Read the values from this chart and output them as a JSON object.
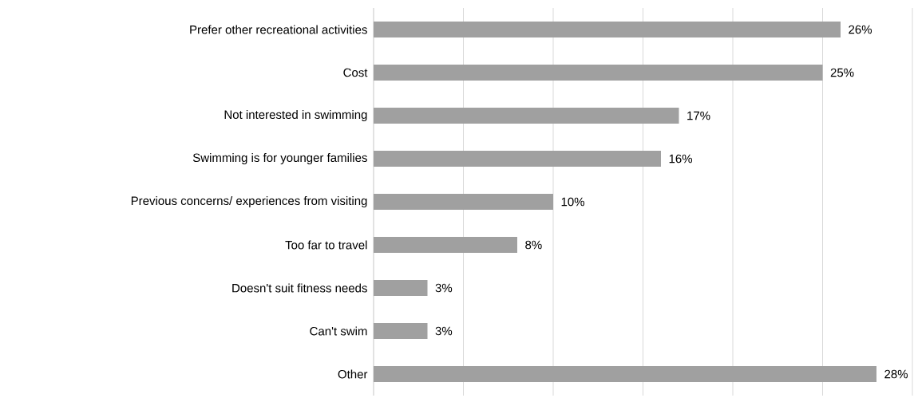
{
  "chart_data": {
    "type": "bar",
    "orientation": "horizontal",
    "categories": [
      "Prefer other recreational activities",
      "Cost",
      "Not interested in swimming",
      "Swimming is for younger families",
      "Previous concerns/ experiences from visiting",
      "Too far to travel",
      "Doesn't suit fitness needs",
      "Can't swim",
      "Other"
    ],
    "values": [
      26,
      25,
      17,
      16,
      10,
      8,
      3,
      3,
      28
    ],
    "value_labels": [
      "26%",
      "25%",
      "17%",
      "16%",
      "10%",
      "8%",
      "3%",
      "3%",
      "28%"
    ],
    "color": "#a0a0a0",
    "xlim": [
      0,
      30
    ],
    "xticks": [
      {
        "value": 0,
        "label": null
      },
      {
        "value": 5,
        "label": null
      },
      {
        "value": 10,
        "label": null
      },
      {
        "value": 15,
        "label": null
      },
      {
        "value": 20,
        "label": null
      },
      {
        "value": 25,
        "label": null
      },
      {
        "value": 30,
        "label": null
      }
    ],
    "grid": "x",
    "tick_labels": "y"
  }
}
